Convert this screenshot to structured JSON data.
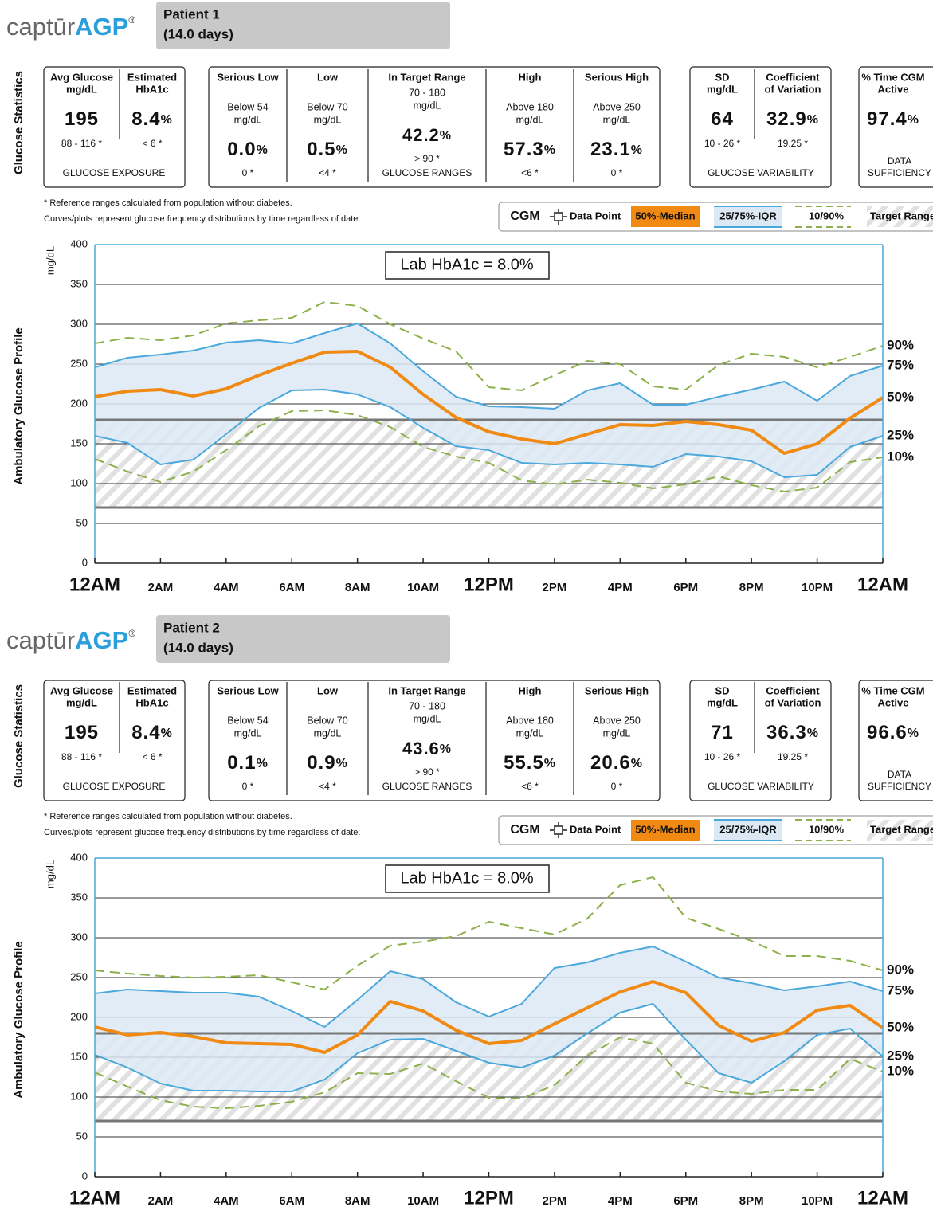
{
  "logo": {
    "text": "captūr",
    "bold": "AGP",
    "mark": "®"
  },
  "section_labels": {
    "stats": "Glucose Statistics",
    "profile": "Ambulatory Glucose Profile"
  },
  "footnotes": [
    "* Reference ranges calculated from population without diabetes.",
    "Curves/plots represent glucose frequency distributions by time regardless of date."
  ],
  "legend": {
    "title": "CGM",
    "items": [
      "Data Point",
      "50%-Median",
      "25/75%-IQR",
      "10/90%",
      "Target Range"
    ]
  },
  "reports": [
    {
      "patient": "Patient 1",
      "days": "(14.0 days)",
      "exposure": {
        "columns": [
          {
            "title": [
              "Avg Glucose",
              "mg/dL"
            ],
            "value": "195",
            "ref": "88 - 116 *"
          },
          {
            "title": [
              "Estimated",
              "HbA1c"
            ],
            "value": "8.4",
            "unit": "%",
            "ref": "< 6 *"
          }
        ],
        "footer": "GLUCOSE EXPOSURE"
      },
      "ranges": {
        "columns": [
          {
            "title": [
              "Serious Low"
            ],
            "sub": [
              "Below 54",
              "mg/dL"
            ],
            "value": "0.0",
            "unit": "%",
            "ref": "0 *"
          },
          {
            "title": [
              "Low"
            ],
            "sub": [
              "Below 70",
              "mg/dL"
            ],
            "value": "0.5",
            "unit": "%",
            "ref": "<4 *"
          },
          {
            "title": [
              "In Target Range"
            ],
            "sub": [
              "70 - 180",
              "mg/dL"
            ],
            "value": "42.2",
            "unit": "%",
            "ref": "> 90 *"
          },
          {
            "title": [
              "High"
            ],
            "sub": [
              "Above 180",
              "mg/dL"
            ],
            "value": "57.3",
            "unit": "%",
            "ref": "<6 *"
          },
          {
            "title": [
              "Serious High"
            ],
            "sub": [
              "Above 250",
              "mg/dL"
            ],
            "value": "23.1",
            "unit": "%",
            "ref": "0 *"
          }
        ],
        "footer": "GLUCOSE RANGES"
      },
      "variability": {
        "columns": [
          {
            "title": [
              "SD",
              "mg/dL"
            ],
            "value": "64",
            "ref": "10 - 26 *"
          },
          {
            "title": [
              "Coefficient",
              "of Variation"
            ],
            "value": "32.9",
            "unit": "%",
            "ref": "19.25 *"
          }
        ],
        "footer": "GLUCOSE VARIABILITY"
      },
      "sufficiency": {
        "columns": [
          {
            "title": [
              "% Time CGM",
              "Active"
            ],
            "value": "97.4",
            "unit": "%"
          }
        ],
        "footer": [
          "DATA",
          "SUFFICIENCY"
        ]
      }
    },
    {
      "patient": "Patient 2",
      "days": "(14.0 days)",
      "exposure": {
        "columns": [
          {
            "title": [
              "Avg Glucose",
              "mg/dL"
            ],
            "value": "195",
            "ref": "88 - 116 *"
          },
          {
            "title": [
              "Estimated",
              "HbA1c"
            ],
            "value": "8.4",
            "unit": "%",
            "ref": "< 6 *"
          }
        ],
        "footer": "GLUCOSE EXPOSURE"
      },
      "ranges": {
        "columns": [
          {
            "title": [
              "Serious Low"
            ],
            "sub": [
              "Below 54",
              "mg/dL"
            ],
            "value": "0.1",
            "unit": "%",
            "ref": "0 *"
          },
          {
            "title": [
              "Low"
            ],
            "sub": [
              "Below 70",
              "mg/dL"
            ],
            "value": "0.9",
            "unit": "%",
            "ref": "<4 *"
          },
          {
            "title": [
              "In Target Range"
            ],
            "sub": [
              "70 - 180",
              "mg/dL"
            ],
            "value": "43.6",
            "unit": "%",
            "ref": "> 90 *"
          },
          {
            "title": [
              "High"
            ],
            "sub": [
              "Above 180",
              "mg/dL"
            ],
            "value": "55.5",
            "unit": "%",
            "ref": "<6 *"
          },
          {
            "title": [
              "Serious High"
            ],
            "sub": [
              "Above 250",
              "mg/dL"
            ],
            "value": "20.6",
            "unit": "%",
            "ref": "0 *"
          }
        ],
        "footer": "GLUCOSE RANGES"
      },
      "variability": {
        "columns": [
          {
            "title": [
              "SD",
              "mg/dL"
            ],
            "value": "71",
            "ref": "10 - 26 *"
          },
          {
            "title": [
              "Coefficient",
              "of Variation"
            ],
            "value": "36.3",
            "unit": "%",
            "ref": "19.25 *"
          }
        ],
        "footer": "GLUCOSE VARIABILITY"
      },
      "sufficiency": {
        "columns": [
          {
            "title": [
              "% Time CGM",
              "Active"
            ],
            "value": "96.6",
            "unit": "%"
          }
        ],
        "footer": [
          "DATA",
          "SUFFICIENCY"
        ]
      }
    }
  ],
  "chart_data": [
    {
      "type": "line",
      "ylabel": "mg/dL",
      "annotation": "Lab HbA1c = 8.0%",
      "x": [
        0,
        1,
        2,
        3,
        4,
        5,
        6,
        7,
        8,
        9,
        10,
        11,
        12,
        13,
        14,
        15,
        16,
        17,
        18,
        19,
        20,
        21,
        22,
        23,
        24
      ],
      "xlim": [
        0,
        24
      ],
      "xticks": [
        {
          "value": 0,
          "label": "12AM"
        },
        {
          "value": 2,
          "label": "2AM"
        },
        {
          "value": 4,
          "label": "4AM"
        },
        {
          "value": 6,
          "label": "6AM"
        },
        {
          "value": 8,
          "label": "8AM"
        },
        {
          "value": 10,
          "label": "10AM"
        },
        {
          "value": 12,
          "label": "12PM"
        },
        {
          "value": 14,
          "label": "2PM"
        },
        {
          "value": 16,
          "label": "4PM"
        },
        {
          "value": 18,
          "label": "6PM"
        },
        {
          "value": 20,
          "label": "8PM"
        },
        {
          "value": 22,
          "label": "10PM"
        },
        {
          "value": 24,
          "label": "12AM"
        }
      ],
      "ylim": [
        0,
        400
      ],
      "yticks": [
        0,
        50,
        100,
        150,
        200,
        250,
        300,
        350,
        400
      ],
      "target_range": [
        70,
        180
      ],
      "band_color": "#dce9f5",
      "series": [
        {
          "name": "90%",
          "color": "#8db04a",
          "dashed": true,
          "values": [
            276,
            283,
            280,
            286,
            301,
            305,
            308,
            328,
            323,
            300,
            282,
            266,
            221,
            217,
            236,
            254,
            250,
            222,
            218,
            249,
            263,
            259,
            246,
            259,
            273
          ]
        },
        {
          "name": "75%",
          "color": "#4aa8dc",
          "values": [
            246,
            258,
            262,
            267,
            277,
            280,
            276,
            289,
            301,
            276,
            241,
            209,
            197,
            196,
            194,
            217,
            226,
            199,
            199,
            209,
            218,
            228,
            204,
            235,
            248
          ]
        },
        {
          "name": "50%",
          "color": "#f08a12",
          "values": [
            209,
            216,
            218,
            210,
            219,
            236,
            251,
            265,
            266,
            246,
            212,
            183,
            165,
            156,
            150,
            162,
            174,
            173,
            178,
            174,
            167,
            138,
            150,
            182,
            208
          ]
        },
        {
          "name": "25%",
          "color": "#4aa8dc",
          "values": [
            160,
            151,
            124,
            130,
            162,
            195,
            217,
            218,
            212,
            196,
            170,
            147,
            142,
            126,
            124,
            126,
            124,
            121,
            137,
            134,
            128,
            108,
            111,
            146,
            160
          ]
        },
        {
          "name": "10%",
          "color": "#8db04a",
          "dashed": true,
          "values": [
            131,
            115,
            102,
            115,
            142,
            172,
            191,
            192,
            186,
            171,
            146,
            134,
            126,
            104,
            99,
            105,
            101,
            94,
            99,
            109,
            98,
            90,
            95,
            127,
            133
          ]
        }
      ]
    },
    {
      "type": "line",
      "ylabel": "mg/dL",
      "annotation": "Lab HbA1c = 8.0%",
      "x": [
        0,
        1,
        2,
        3,
        4,
        5,
        6,
        7,
        8,
        9,
        10,
        11,
        12,
        13,
        14,
        15,
        16,
        17,
        18,
        19,
        20,
        21,
        22,
        23,
        24
      ],
      "xlim": [
        0,
        24
      ],
      "xticks": [
        {
          "value": 0,
          "label": "12AM"
        },
        {
          "value": 2,
          "label": "2AM"
        },
        {
          "value": 4,
          "label": "4AM"
        },
        {
          "value": 6,
          "label": "6AM"
        },
        {
          "value": 8,
          "label": "8AM"
        },
        {
          "value": 10,
          "label": "10AM"
        },
        {
          "value": 12,
          "label": "12PM"
        },
        {
          "value": 14,
          "label": "2PM"
        },
        {
          "value": 16,
          "label": "4PM"
        },
        {
          "value": 18,
          "label": "6PM"
        },
        {
          "value": 20,
          "label": "8PM"
        },
        {
          "value": 22,
          "label": "10PM"
        },
        {
          "value": 24,
          "label": "12AM"
        }
      ],
      "ylim": [
        0,
        400
      ],
      "yticks": [
        0,
        50,
        100,
        150,
        200,
        250,
        300,
        350,
        400
      ],
      "target_range": [
        70,
        180
      ],
      "band_color": "#dce9f5",
      "series": [
        {
          "name": "90%",
          "color": "#8db04a",
          "dashed": true,
          "values": [
            259,
            255,
            252,
            250,
            251,
            253,
            244,
            235,
            265,
            290,
            295,
            302,
            320,
            312,
            304,
            324,
            366,
            376,
            325,
            311,
            296,
            277,
            277,
            271,
            259
          ]
        },
        {
          "name": "75%",
          "color": "#4aa8dc",
          "values": [
            230,
            235,
            233,
            231,
            231,
            226,
            208,
            188,
            222,
            258,
            248,
            219,
            201,
            217,
            262,
            269,
            281,
            289,
            270,
            250,
            243,
            234,
            239,
            245,
            233
          ]
        },
        {
          "name": "50%",
          "color": "#f08a12",
          "values": [
            188,
            178,
            181,
            176,
            168,
            167,
            166,
            156,
            178,
            220,
            208,
            184,
            167,
            171,
            192,
            212,
            232,
            245,
            231,
            190,
            170,
            181,
            209,
            215,
            187
          ]
        },
        {
          "name": "25%",
          "color": "#4aa8dc",
          "values": [
            153,
            137,
            117,
            108,
            108,
            107,
            107,
            122,
            155,
            172,
            173,
            158,
            143,
            137,
            152,
            180,
            206,
            217,
            172,
            130,
            118,
            145,
            178,
            186,
            151
          ]
        },
        {
          "name": "10%",
          "color": "#8db04a",
          "dashed": true,
          "values": [
            131,
            113,
            96,
            88,
            86,
            89,
            94,
            106,
            130,
            129,
            142,
            120,
            99,
            98,
            115,
            152,
            175,
            167,
            118,
            107,
            104,
            109,
            109,
            148,
            132
          ]
        }
      ]
    }
  ]
}
